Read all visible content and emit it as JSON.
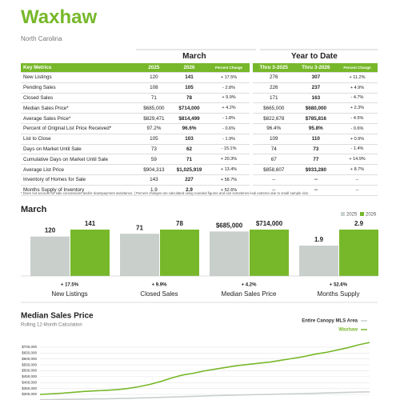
{
  "header": {
    "title": "Waxhaw",
    "subtitle": "North Carolina"
  },
  "table": {
    "group_headers": [
      "March",
      "Year to Date"
    ],
    "columns": [
      "Key Metrics",
      "2025",
      "2026",
      "Percent Change",
      "Thru 3-2025",
      "Thru 3-2026",
      "Percent Change"
    ],
    "rows": [
      [
        "New Listings",
        "120",
        "141",
        "+ 17.5%",
        "276",
        "307",
        "+ 11.2%"
      ],
      [
        "Pending Sales",
        "108",
        "105",
        "- 2.8%",
        "226",
        "237",
        "+ 4.9%"
      ],
      [
        "Closed Sales",
        "71",
        "78",
        "+ 9.9%",
        "171",
        "163",
        "- 4.7%"
      ],
      [
        "Median Sales Price*",
        "$685,000",
        "$714,000",
        "+ 4.2%",
        "$665,000",
        "$680,000",
        "+ 2.3%"
      ],
      [
        "Average Sales Price*",
        "$829,471",
        "$814,499",
        "- 1.8%",
        "$822,678",
        "$785,816",
        "- 4.5%"
      ],
      [
        "Percent of Original List Price Received*",
        "97.2%",
        "96.6%",
        "- 0.6%",
        "96.4%",
        "95.8%",
        "- 0.6%"
      ],
      [
        "List to Close",
        "105",
        "103",
        "- 1.9%",
        "109",
        "110",
        "+ 0.9%"
      ],
      [
        "Days on Market Until Sale",
        "73",
        "62",
        "- 15.1%",
        "74",
        "73",
        "- 1.4%"
      ],
      [
        "Cumulative Days on Market Until Sale",
        "59",
        "71",
        "+ 20.3%",
        "67",
        "77",
        "+ 14.9%"
      ],
      [
        "Average List Price",
        "$904,313",
        "$1,025,919",
        "+ 13.4%",
        "$858,607",
        "$933,280",
        "+ 8.7%"
      ],
      [
        "Inventory of Homes for Sale",
        "143",
        "227",
        "+ 58.7%",
        "--",
        "--",
        "--"
      ],
      [
        "Months Supply of Inventory",
        "1.9",
        "2.9",
        "+ 52.6%",
        "--",
        "--",
        "--"
      ]
    ]
  },
  "footnote": "* Does not account for sale concessions and/or downpayment assistance.  |  Percent changes are calculated using rounded figures and can sometimes look extreme due to small sample size.",
  "chart_data": [
    {
      "type": "bar",
      "title": "March",
      "categories": [
        "New Listings",
        "Closed Sales",
        "Median Sales Price",
        "Months Supply"
      ],
      "changes": [
        "+ 17.5%",
        "+ 9.9%",
        "+ 4.2%",
        "+ 52.6%"
      ],
      "series": [
        {
          "name": "2025",
          "color": "#c9d0cc",
          "values": [
            120,
            71,
            685000,
            1.9
          ],
          "value_labels": [
            "120",
            "71",
            "$685,000",
            "1.9"
          ]
        },
        {
          "name": "2026",
          "color": "#77b82a",
          "values": [
            141,
            78,
            714000,
            2.9
          ],
          "value_labels": [
            "141",
            "78",
            "$714,000",
            "2.9"
          ]
        }
      ]
    },
    {
      "type": "line",
      "title": "Median Sales Price",
      "subtitle": "Rolling 12-Month Calculation",
      "ylim": [
        250000,
        750000
      ],
      "yticks": [
        {
          "value": 300000,
          "label": "$300,000"
        },
        {
          "value": 350000,
          "label": "$350,000"
        },
        {
          "value": 400000,
          "label": "$400,000"
        },
        {
          "value": 450000,
          "label": "$450,000"
        },
        {
          "value": 500000,
          "label": "$500,000"
        },
        {
          "value": 550000,
          "label": "$550,000"
        },
        {
          "value": 600000,
          "label": "$600,000"
        },
        {
          "value": 650000,
          "label": "$650,000"
        },
        {
          "value": 700000,
          "label": "$700,000"
        }
      ],
      "grid": true,
      "series": [
        {
          "name": "Entire Canopy MLS Area",
          "color": "#c9d0cc",
          "values": [
            255000,
            256000,
            258000,
            259000,
            260000,
            262000,
            263000,
            265000,
            267000,
            270000,
            272000,
            275000,
            278000,
            281000,
            284000,
            287000,
            290000,
            292000,
            295000,
            297000,
            299000,
            301000,
            303000,
            305000,
            307000,
            309000,
            312000,
            315000,
            318000,
            320000,
            322000
          ]
        },
        {
          "name": "Waxhaw",
          "color": "#77b82a",
          "values": [
            300000,
            305000,
            310000,
            318000,
            325000,
            330000,
            335000,
            340000,
            350000,
            365000,
            385000,
            410000,
            440000,
            465000,
            480000,
            500000,
            515000,
            530000,
            545000,
            555000,
            565000,
            575000,
            590000,
            605000,
            620000,
            640000,
            655000,
            675000,
            695000,
            720000,
            740000
          ]
        }
      ]
    }
  ]
}
